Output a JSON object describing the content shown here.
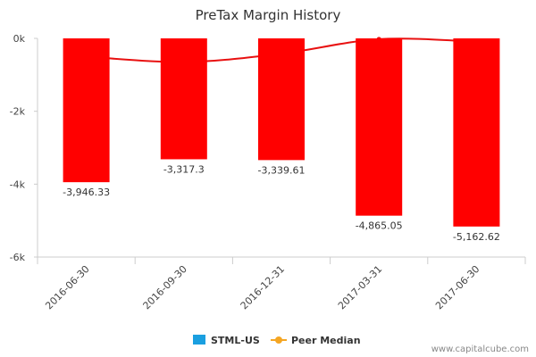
{
  "chart_data": {
    "type": "bar",
    "title": "PreTax Margin History",
    "categories": [
      "2016-06-30",
      "2016-09-30",
      "2016-12-31",
      "2017-03-31",
      "2017-06-30"
    ],
    "series": [
      {
        "name": "STML-US",
        "type": "bar",
        "color": "#ff0000",
        "values": [
          -3946.33,
          -3317.3,
          -3339.61,
          -4865.05,
          -5162.62
        ],
        "data_labels": [
          "-3,946.33",
          "-3,317.3",
          "-3,339.61",
          "-4,865.05",
          "-5,162.62"
        ]
      },
      {
        "name": "Peer Median",
        "type": "line",
        "color": "#e81010",
        "values": [
          -500,
          -650,
          -420,
          -20,
          -90
        ]
      }
    ],
    "ylim": [
      -6000,
      0
    ],
    "yticks": [
      0,
      -2000,
      -4000,
      -6000
    ],
    "ytick_labels": [
      "0k",
      "-2k",
      "-4k",
      "-6k"
    ],
    "legend": {
      "position": "bottom",
      "items": [
        {
          "label": "STML-US",
          "color": "#1a9fe0",
          "marker": "square"
        },
        {
          "label": "Peer Median",
          "color": "#f5a623",
          "marker": "line-dot"
        }
      ]
    },
    "grid": false
  },
  "credit": "www.capitalcube.com"
}
